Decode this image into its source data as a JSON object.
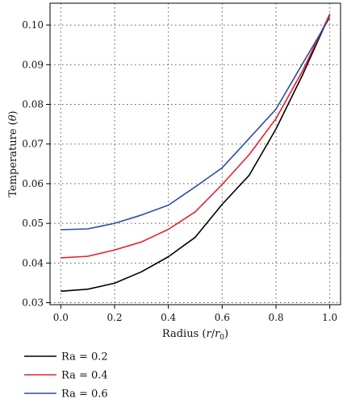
{
  "chart_data": {
    "type": "line",
    "xlabel": "Radius (r/r0)",
    "ylabel": "Temperature (θ)",
    "xlabel_parts": {
      "prefix": "Radius (",
      "var": "r",
      "slash": "/",
      "var2": "r",
      "sub": "0",
      "suffix": ")"
    },
    "ylabel_parts": {
      "prefix": "Temperature (",
      "var": "θ",
      "suffix": ")"
    },
    "xlim": [
      -0.04,
      1.04
    ],
    "ylim": [
      0.0295,
      0.1055
    ],
    "xticks": [
      "0.0",
      "0.2",
      "0.4",
      "0.6",
      "0.8",
      "1.0"
    ],
    "xtick_values": [
      0.0,
      0.2,
      0.4,
      0.6,
      0.8,
      1.0
    ],
    "yticks": [
      "0.03",
      "0.04",
      "0.05",
      "0.06",
      "0.07",
      "0.08",
      "0.09",
      "0.10"
    ],
    "ytick_values": [
      0.03,
      0.04,
      0.05,
      0.06,
      0.07,
      0.08,
      0.09,
      0.1
    ],
    "grid": true,
    "legend_position": "below",
    "x": [
      0.0,
      0.1,
      0.2,
      0.3,
      0.4,
      0.5,
      0.6,
      0.7,
      0.8,
      0.9,
      1.0
    ],
    "series": [
      {
        "name": "Ra = 0.2",
        "color": "#000000",
        "values": [
          0.0329,
          0.0334,
          0.0349,
          0.0378,
          0.0416,
          0.0465,
          0.0548,
          0.0621,
          0.0738,
          0.0876,
          0.1027
        ]
      },
      {
        "name": "Ra = 0.4",
        "color": "#e8202a",
        "values": [
          0.0413,
          0.0417,
          0.0433,
          0.0453,
          0.0485,
          0.0529,
          0.0598,
          0.0673,
          0.0764,
          0.0886,
          0.1028
        ]
      },
      {
        "name": "Ra = 0.6",
        "color": "#2c4fa3",
        "values": [
          0.0484,
          0.0486,
          0.05,
          0.0521,
          0.0546,
          0.0592,
          0.064,
          0.0714,
          0.0788,
          0.0904,
          0.1019
        ]
      }
    ]
  }
}
